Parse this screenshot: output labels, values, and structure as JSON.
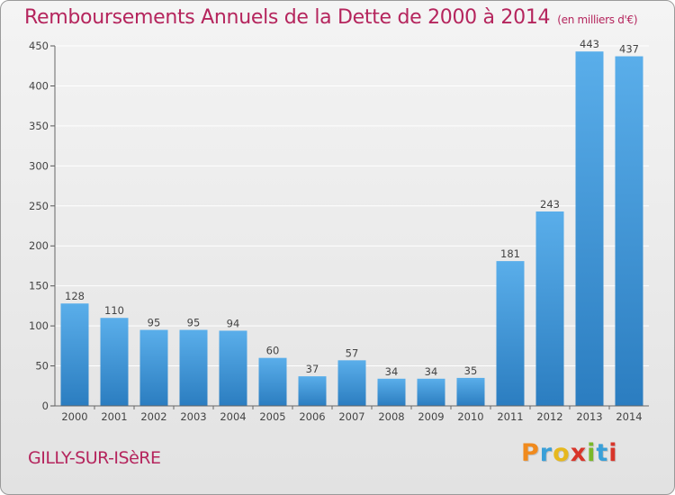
{
  "title": "Remboursements Annuels de la Dette de 2000 à 2014",
  "unit": "(en milliers d'€)",
  "commune": "GILLY-SUR-ISèRE",
  "logo": {
    "text": "Proxiti",
    "colors": [
      "#f08a1d",
      "#3aa0d8",
      "#e6b81e",
      "#d8352a",
      "#7ab829",
      "#3aa0d8",
      "#d8352a"
    ]
  },
  "colors": {
    "title": "#b5255d",
    "bar_top": "#5aaeea",
    "bar_bottom": "#2b7dc0",
    "grid": "#ffffff"
  },
  "chart_data": {
    "type": "bar",
    "title": "Remboursements Annuels de la Dette de 2000 à 2014",
    "xlabel": "",
    "ylabel": "",
    "categories": [
      "2000",
      "2001",
      "2002",
      "2003",
      "2004",
      "2005",
      "2006",
      "2007",
      "2008",
      "2009",
      "2010",
      "2011",
      "2012",
      "2013",
      "2014"
    ],
    "values": [
      128,
      110,
      95,
      95,
      94,
      60,
      37,
      57,
      34,
      34,
      35,
      181,
      243,
      443,
      437
    ],
    "ylim": [
      0,
      450
    ],
    "yticks": [
      0,
      50,
      100,
      150,
      200,
      250,
      300,
      350,
      400,
      450
    ],
    "grid": true
  }
}
